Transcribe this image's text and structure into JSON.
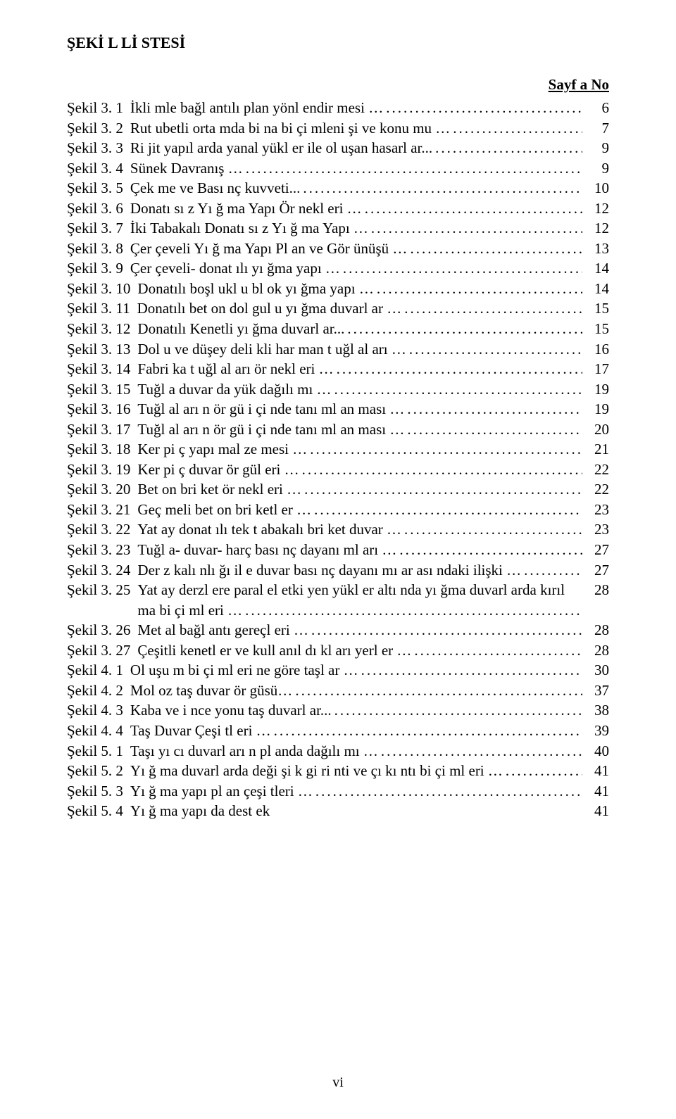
{
  "heading": "ŞEKİ L Lİ STESİ",
  "page_header": "Sayf a No",
  "rows": [
    {
      "label": "Şekil 3. 1",
      "desc": "İkli mle bağl antılı plan yönl endir mesi …",
      "page": "6"
    },
    {
      "label": "Şekil 3. 2",
      "desc": "Rut ubetli orta mda bi na bi çi mleni şi ve konu mu …",
      "page": "7"
    },
    {
      "label": "Şekil 3. 3",
      "desc": "Ri jit yapıl arda yanal yükl er ile ol uşan hasarl ar...",
      "page": "9"
    },
    {
      "label": "Şekil 3. 4",
      "desc": "Sünek Davranış …",
      "page": "9"
    },
    {
      "label": "Şekil 3. 5",
      "desc": "Çek me ve Bası nç kuvveti...",
      "page": "10"
    },
    {
      "label": "Şekil 3. 6",
      "desc": "Donatı sı z Yı ğ ma Yapı Ör nekl eri …",
      "page": "12"
    },
    {
      "label": "Şekil 3. 7",
      "desc": "İki Tabakalı Donatı sı z Yı ğ ma Yapı …",
      "page": "12"
    },
    {
      "label": "Şekil 3. 8",
      "desc": "Çer çeveli Yı ğ ma Yapı Pl an ve Gör ünüşü …",
      "page": "13"
    },
    {
      "label": "Şekil 3. 9",
      "desc": "Çer çeveli- donat ılı yı ğma yapı …",
      "page": "14"
    },
    {
      "label": "Şekil 3. 10",
      "desc": "Donatılı boşl ukl u bl ok yı ğma yapı …",
      "page": "14"
    },
    {
      "label": "Şekil 3. 11",
      "desc": "Donatılı bet on dol gul u yı ğma duvarl ar …",
      "page": "15"
    },
    {
      "label": "Şekil 3. 12",
      "desc": "Donatılı Kenetli yı ğma duvarl ar...",
      "page": "15"
    },
    {
      "label": "Şekil 3. 13",
      "desc": "Dol u ve düşey deli kli har man t uğl al arı …",
      "page": "16"
    },
    {
      "label": "Şekil 3. 14",
      "desc": "Fabri ka t uğl al arı ör nekl eri …",
      "page": "17"
    },
    {
      "label": "Şekil 3. 15",
      "desc": "Tuğl a duvar da yük dağılı mı …",
      "page": "19"
    },
    {
      "label": "Şekil 3. 16",
      "desc": "Tuğl al arı n ör gü i çi nde tanı ml an ması …",
      "page": "19"
    },
    {
      "label": "Şekil 3. 17",
      "desc": "Tuğl al arı n ör gü i çi nde tanı ml an ması …",
      "page": "20"
    },
    {
      "label": "Şekil 3. 18",
      "desc": "Ker pi ç yapı mal ze mesi …",
      "page": "21"
    },
    {
      "label": "Şekil 3. 19",
      "desc": "Ker pi ç duvar ör gül eri …",
      "page": "22"
    },
    {
      "label": "Şekil 3. 20",
      "desc": "Bet on bri ket ör nekl eri …",
      "page": "22"
    },
    {
      "label": "Şekil 3. 21",
      "desc": "Geç meli bet on bri ketl er …",
      "page": "23"
    },
    {
      "label": "Şekil 3. 22",
      "desc": "Yat ay donat ılı tek t abakalı bri ket duvar …",
      "page": "23"
    },
    {
      "label": "Şekil 3. 23",
      "desc": "Tuğl a- duvar- harç bası nç dayanı ml arı …",
      "page": "27"
    },
    {
      "label": "Şekil 3. 24",
      "desc": "Der z kalı nlı ğı il e duvar bası nç dayanı mı ar ası ndaki ilişki …",
      "page": "27"
    },
    {
      "label": "Şekil 3. 25",
      "desc": "Yat ay derzl ere paral el etki yen yükl er altı nda yı ğma duvarl arda kırıl ma bi çi ml eri …",
      "page": "28"
    },
    {
      "label": "Şekil 3. 26",
      "desc": "Met al bağl antı gereçl eri …",
      "page": "28"
    },
    {
      "label": "Şekil 3. 27",
      "desc": "Çeşitli kenetl er ve kull anıl dı kl arı yerl er …",
      "page": "28"
    },
    {
      "label": "Şekil 4. 1",
      "desc": "Ol uşu m bi çi ml eri ne göre taşl ar …",
      "page": "30"
    },
    {
      "label": "Şekil 4. 2",
      "desc": "Mol oz taş duvar ör güsü…",
      "page": "37"
    },
    {
      "label": "Şekil 4. 3",
      "desc": "Kaba ve i nce yonu taş duvarl ar...",
      "page": "38"
    },
    {
      "label": "Şekil 4. 4",
      "desc": "Taş Duvar Çeşi tl eri …",
      "page": "39"
    },
    {
      "label": "Şekil 5. 1",
      "desc": "Taşı yı cı duvarl arı n pl anda dağılı mı …",
      "page": "40"
    },
    {
      "label": "Şekil 5. 2",
      "desc": "Yı ğ ma duvarl arda deği şi k gi ri nti ve çı kı ntı bi çi ml eri …",
      "page": "41"
    },
    {
      "label": "Şekil 5. 3",
      "desc": "Yı ğ ma yapı pl an çeşi tleri …",
      "page": "41"
    },
    {
      "label": "Şekil 5. 4",
      "desc": "Yı ğ ma yapı da dest ek",
      "page": "41",
      "no_dots": true
    }
  ],
  "multi_line": [
    "Şekil 3. 3",
    "Şekil 3. 6",
    "Şekil 3. 7",
    "Şekil 3. 8",
    "Şekil 3. 14",
    "Şekil 3. 25",
    "Şekil 5. 3"
  ],
  "footer": "vi"
}
